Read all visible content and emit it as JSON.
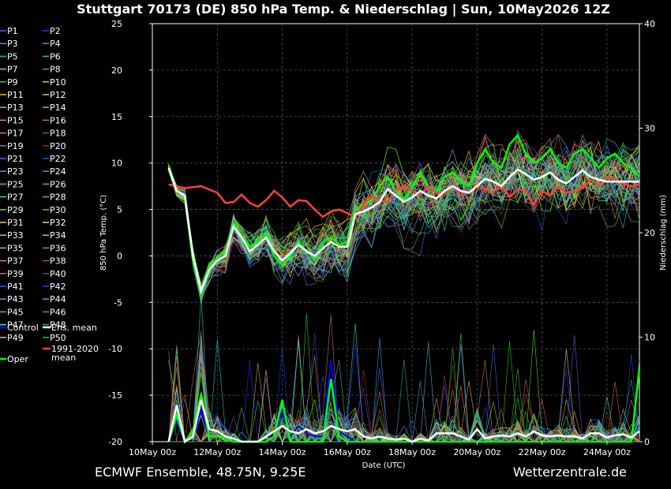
{
  "chart_data": {
    "type": "line",
    "title": "Stuttgart 70173 (DE)  850 hPa Temp. & Niederschlag | Sun, 10May2026 12Z",
    "xlabel": "Date (UTC)",
    "ylabel": "850 hPa Temp. (°C)",
    "y2label": "Niederschlag (mm)",
    "ylim": [
      -20,
      25
    ],
    "y2lim": [
      0,
      40
    ],
    "yticks": [
      "25",
      "20",
      "15",
      "10",
      "5",
      "0",
      "-5",
      "-10",
      "-15",
      "-20"
    ],
    "y2ticks": [
      "40",
      "30",
      "20",
      "10",
      "0"
    ],
    "x_ticks": [
      "10May 00z",
      "12May 00z",
      "14May 00z",
      "16May 00z",
      "18May 00z",
      "20May 00z",
      "22May 00z",
      "24May 00z"
    ],
    "x_range_days": [
      0,
      15
    ],
    "grid": true,
    "legend_position": "left-outside",
    "legend": {
      "perturbations": [
        {
          "name": "P1",
          "color": "#4169e1"
        },
        {
          "name": "P2",
          "color": "#1e3cff"
        },
        {
          "name": "P3",
          "color": "#5b8fd6"
        },
        {
          "name": "P4",
          "color": "#3aa0e0"
        },
        {
          "name": "P5",
          "color": "#20b2aa"
        },
        {
          "name": "P6",
          "color": "#2ecc71"
        },
        {
          "name": "P7",
          "color": "#48d1cc"
        },
        {
          "name": "P8",
          "color": "#3cb371"
        },
        {
          "name": "P9",
          "color": "#32cd32"
        },
        {
          "name": "P10",
          "color": "#7cfc00"
        },
        {
          "name": "P11",
          "color": "#d4c040"
        },
        {
          "name": "P12",
          "color": "#e0c060"
        },
        {
          "name": "P13",
          "color": "#d8b030"
        },
        {
          "name": "P14",
          "color": "#f0a030"
        },
        {
          "name": "P15",
          "color": "#e09060"
        },
        {
          "name": "P16",
          "color": "#c87040"
        },
        {
          "name": "P17",
          "color": "#d08040"
        },
        {
          "name": "P18",
          "color": "#b04030"
        },
        {
          "name": "P19",
          "color": "#c06060"
        },
        {
          "name": "P20",
          "color": "#a02020"
        },
        {
          "name": "P21",
          "color": "#5060e0"
        },
        {
          "name": "P22",
          "color": "#2050d0"
        },
        {
          "name": "P23",
          "color": "#6090e0"
        },
        {
          "name": "P24",
          "color": "#40a0c0"
        },
        {
          "name": "P25",
          "color": "#30c0c0"
        },
        {
          "name": "P26",
          "color": "#30c090"
        },
        {
          "name": "P27",
          "color": "#40d0b0"
        },
        {
          "name": "P28",
          "color": "#50c060"
        },
        {
          "name": "P29",
          "color": "#60e040"
        },
        {
          "name": "P30",
          "color": "#40e000"
        },
        {
          "name": "P31",
          "color": "#e0d060"
        },
        {
          "name": "P32",
          "color": "#e8d080"
        },
        {
          "name": "P33",
          "color": "#d8c050"
        },
        {
          "name": "P34",
          "color": "#f0b040"
        },
        {
          "name": "P35",
          "color": "#e0a070"
        },
        {
          "name": "P36",
          "color": "#c08050"
        },
        {
          "name": "P37",
          "color": "#e08050"
        },
        {
          "name": "P38",
          "color": "#c05040"
        },
        {
          "name": "P39",
          "color": "#d07070"
        },
        {
          "name": "P40",
          "color": "#b03030"
        },
        {
          "name": "P41",
          "color": "#4050f0"
        },
        {
          "name": "P42",
          "color": "#1840e0"
        },
        {
          "name": "P43",
          "color": "#7090d0"
        },
        {
          "name": "P44",
          "color": "#50b0d0"
        },
        {
          "name": "P45",
          "color": "#20d0d0"
        },
        {
          "name": "P46",
          "color": "#20b080"
        },
        {
          "name": "P47",
          "color": "#50e0c0"
        },
        {
          "name": "P48",
          "color": "#40b050"
        },
        {
          "name": "P49",
          "color": "#70f050"
        },
        {
          "name": "P50",
          "color": "#30d000"
        }
      ],
      "control": {
        "name": "Control",
        "color": "#0000ff"
      },
      "ens_mean": {
        "name": "Ens. mean",
        "color": "#ffffff"
      },
      "clim_mean": {
        "name_line1": "1991-2020",
        "name_line2": "mean",
        "color": "#ff4040"
      },
      "oper": {
        "name": "Oper",
        "color": "#00ff00"
      }
    },
    "series": [
      {
        "name": "Ens. mean",
        "axis": "temp",
        "x": [
          0.5,
          0.75,
          1,
          1.25,
          1.5,
          1.75,
          2,
          2.25,
          2.5,
          2.75,
          3,
          3.25,
          3.5,
          3.75,
          4,
          4.25,
          4.5,
          4.75,
          5,
          5.25,
          5.5,
          5.75,
          6,
          6.25,
          6.5,
          6.75,
          7,
          7.25,
          7.5,
          7.75,
          8,
          8.25,
          8.5,
          8.75,
          9,
          9.25,
          9.5,
          9.75,
          10,
          10.25,
          10.5,
          10.75,
          11,
          11.25,
          11.5,
          11.75,
          12,
          12.25,
          12.5,
          12.75,
          13,
          13.25,
          13.5,
          13.75,
          14,
          14.25,
          14.5,
          14.75,
          15
        ],
        "y": [
          9.5,
          7,
          6.5,
          0,
          -3.8,
          -1.5,
          -0.5,
          0,
          3.2,
          2,
          0.5,
          1.2,
          2,
          0.5,
          -0.5,
          0.3,
          1.2,
          0.5,
          0,
          0.8,
          1.5,
          1,
          1,
          4.5,
          4.8,
          5.2,
          5.8,
          7.2,
          6.5,
          5.8,
          6.3,
          7,
          6.5,
          6.2,
          7,
          7.5,
          7,
          6.8,
          7.5,
          8.3,
          8,
          7.5,
          8.5,
          9.3,
          8.8,
          8.2,
          8.5,
          9,
          8.2,
          7.8,
          8.5,
          9.2,
          8.5,
          8.2,
          8,
          8,
          8,
          8,
          8
        ]
      },
      {
        "name": "1991-2020 mean",
        "axis": "temp",
        "x": [
          0.5,
          1,
          1.5,
          2,
          2.25,
          2.5,
          2.75,
          3,
          3.25,
          3.5,
          3.75,
          4,
          4.25,
          4.5,
          4.75,
          5,
          5.25,
          5.5,
          5.75,
          6,
          6.25,
          6.5,
          6.75,
          7,
          7.25,
          7.5,
          7.75,
          8,
          8.25,
          8.5,
          8.75,
          9,
          9.25,
          9.5,
          9.75,
          10,
          10.25,
          10.5,
          10.75,
          11,
          11.25,
          11.5,
          11.75,
          12,
          12.25,
          12.5,
          12.75,
          13,
          13.25,
          13.5,
          13.75,
          14,
          14.25,
          14.5,
          14.75,
          15
        ],
        "y": [
          7.7,
          7.3,
          7.5,
          6.8,
          5.7,
          5.8,
          6.6,
          5.7,
          5.3,
          6,
          7,
          6.3,
          5.3,
          6,
          5.9,
          5,
          4.2,
          4.8,
          5,
          4.6,
          4.2,
          5.5,
          6.5,
          6,
          5.8,
          7.2,
          7.5,
          7,
          6.5,
          7.5,
          6.8,
          6.8,
          7.5,
          6.5,
          7,
          7.5,
          7.2,
          6.8,
          7.8,
          6.3,
          7.2,
          7,
          5.5,
          7,
          6.5,
          7.5,
          6.8,
          7,
          7.3,
          8.2,
          7.6,
          8.5,
          8.3,
          7.8,
          7.5,
          7.7
        ]
      },
      {
        "name": "Oper",
        "axis": "temp",
        "x": [
          0.5,
          0.75,
          1,
          1.25,
          1.5,
          1.75,
          2,
          2.25,
          2.5,
          2.75,
          3,
          3.25,
          3.5,
          3.75,
          4,
          4.25,
          4.5,
          4.75,
          5,
          5.25,
          5.5,
          5.75,
          6,
          6.25,
          6.5,
          6.75,
          7,
          7.25,
          7.5,
          7.75,
          8,
          8.25,
          8.5,
          8.75,
          9,
          9.25,
          9.5,
          9.75,
          10,
          10.25,
          10.5,
          10.75,
          11,
          11.25,
          11.5,
          11.75,
          12,
          12.25,
          12.5,
          12.75,
          13,
          13.25,
          13.5,
          13.75,
          14,
          14.25,
          14.5,
          14.75,
          15
        ],
        "y": [
          9.7,
          7.2,
          6.3,
          -0.5,
          -4,
          -1,
          -0.2,
          0.5,
          3.5,
          2.2,
          1,
          1.5,
          2.5,
          0,
          -1,
          0,
          1.5,
          0.5,
          -0.3,
          1.5,
          2,
          1.2,
          1.5,
          5,
          5.5,
          6,
          7.5,
          8.5,
          7,
          6,
          7.5,
          9,
          7.5,
          7,
          8.5,
          9,
          8,
          7.5,
          10,
          11.5,
          10,
          9.5,
          12,
          13,
          11,
          10,
          10.5,
          11.5,
          10,
          9.5,
          11,
          11.5,
          10.5,
          9.5,
          10.5,
          11,
          10,
          9.5,
          8.5
        ]
      },
      {
        "name": "Precip Ens. mean",
        "axis": "precip",
        "x": [
          0.5,
          0.75,
          1,
          1.25,
          1.5,
          1.75,
          2,
          2.25,
          2.5,
          2.75,
          3,
          3.25,
          3.5,
          3.75,
          4,
          4.25,
          4.5,
          4.75,
          5,
          5.25,
          5.5,
          5.75,
          6,
          6.25,
          6.5,
          6.75,
          7,
          7.25,
          7.5,
          7.75,
          8,
          8.25,
          8.5,
          8.75,
          9,
          9.25,
          9.5,
          9.75,
          10,
          10.25,
          10.5,
          10.75,
          11,
          11.25,
          11.5,
          11.75,
          12,
          12.25,
          12.5,
          12.75,
          13,
          13.25,
          13.5,
          13.75,
          14,
          14.25,
          14.5,
          14.75,
          15
        ],
        "y": [
          0,
          3.5,
          0,
          0.5,
          4,
          1.2,
          1,
          0.5,
          0.3,
          0,
          0,
          0,
          0.5,
          1,
          1.5,
          1,
          0.8,
          1.2,
          0.8,
          1,
          1.5,
          1.2,
          1,
          1.2,
          0.5,
          0.3,
          0.5,
          0.3,
          0.2,
          0.3,
          0,
          0.3,
          0.1,
          0.8,
          0.8,
          0.8,
          0.5,
          0.2,
          1.2,
          0.3,
          0.5,
          0.6,
          0.5,
          0.8,
          0.5,
          1,
          0.6,
          0.5,
          0.6,
          0.5,
          0.5,
          0.3,
          0.8,
          0.8,
          0.4,
          0.6,
          0.7,
          0.4,
          1
        ]
      },
      {
        "name": "Precip Oper",
        "axis": "precip",
        "x": [
          0.5,
          0.75,
          1,
          1.25,
          1.5,
          1.75,
          2,
          2.25,
          2.5,
          2.75,
          3,
          3.25,
          3.5,
          3.75,
          4,
          4.25,
          4.5,
          4.75,
          5,
          5.25,
          5.5,
          5.75,
          6,
          6.25,
          6.5,
          6.75,
          7,
          7.25,
          7.5,
          7.75,
          8,
          8.25,
          8.5,
          8.75,
          9,
          9.25,
          9.5,
          9.75,
          10,
          10.25,
          10.5,
          10.75,
          11,
          11.25,
          11.5,
          11.75,
          12,
          12.25,
          12.5,
          12.75,
          13,
          13.25,
          13.5,
          13.75,
          14,
          14.25,
          14.5,
          14.75,
          15
        ],
        "y": [
          0,
          2.5,
          0,
          1,
          4.5,
          0.5,
          0.5,
          0.3,
          0,
          0,
          0,
          0,
          0,
          0.5,
          4,
          0,
          0,
          0,
          0,
          0,
          6,
          0.5,
          0,
          0,
          0,
          0,
          0,
          0,
          0,
          0,
          0,
          0,
          0,
          0,
          0,
          0,
          0,
          0,
          0,
          0,
          0,
          0,
          0,
          0,
          0,
          0,
          0,
          0,
          0,
          0,
          0,
          0,
          0,
          0,
          0,
          0,
          0,
          0,
          7
        ]
      },
      {
        "name": "Control",
        "axis": "precip",
        "x": [
          0.5,
          0.75,
          1,
          1.25,
          1.5,
          1.75,
          2,
          2.25,
          2.5,
          2.75,
          3,
          3.25,
          3.5,
          3.75,
          4,
          4.25,
          4.5,
          4.75,
          5,
          5.25,
          5.5,
          5.75,
          6,
          6.25
        ],
        "y": [
          0,
          2,
          0,
          0.5,
          3,
          0.5,
          0.5,
          0.3,
          0,
          0,
          0,
          0,
          0.5,
          0.5,
          3,
          0.5,
          1.5,
          0.8,
          0.5,
          0.5,
          7.8,
          1,
          0.5,
          0
        ]
      }
    ],
    "spread_seed": 1234
  },
  "footer": {
    "left": "ECMWF Ensemble, 48.75N, 9.25E",
    "right": "Wetterzentrale.de"
  }
}
